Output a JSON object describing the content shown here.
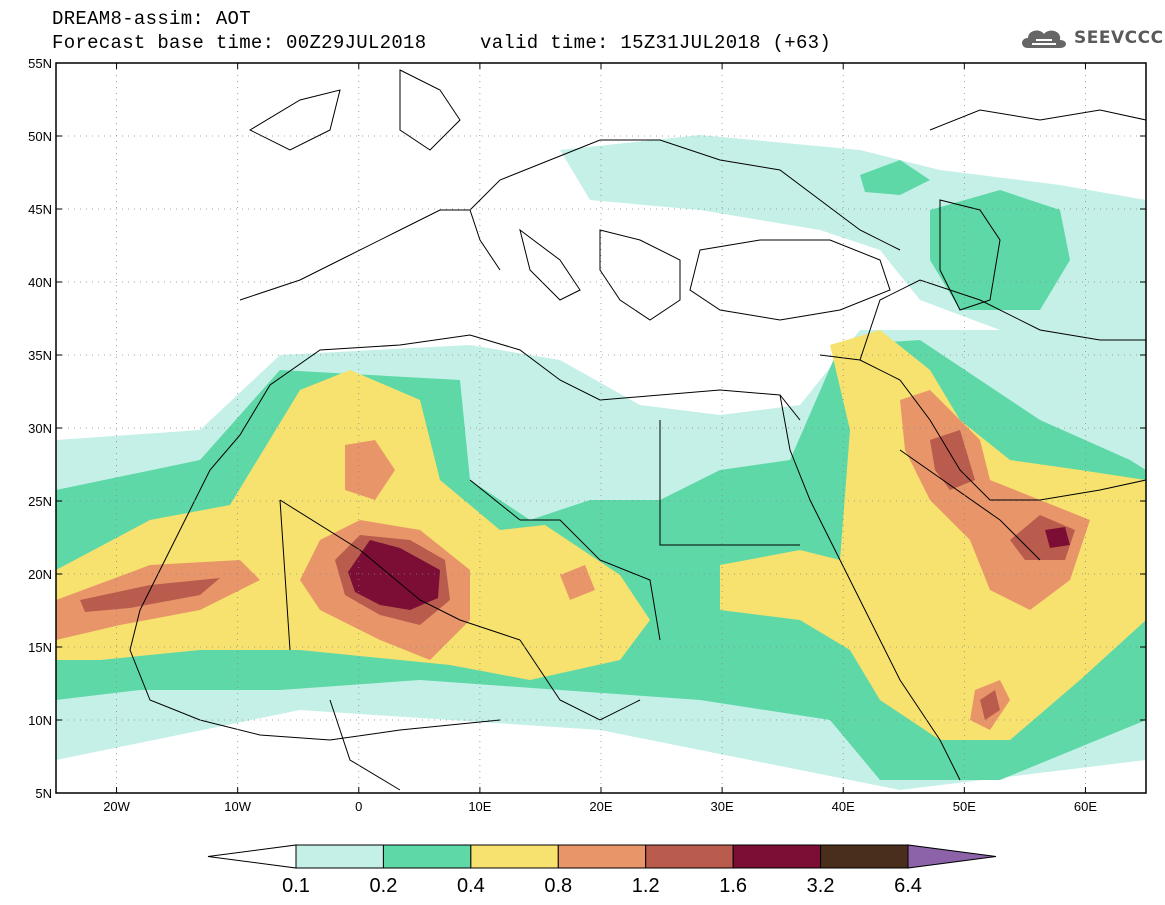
{
  "header": {
    "title_line1": "DREAM8-assim: AOT",
    "title_line2": "Forecast base time: 00Z29JUL2018",
    "valid_time": "valid time: 15Z31JUL2018 (+63)"
  },
  "logo": {
    "icon": "cloud-logo-icon",
    "text": "SEEVCCC"
  },
  "map": {
    "lon_range": [
      -25,
      65
    ],
    "lat_range": [
      5,
      55
    ],
    "lat_labels": [
      "55N",
      "50N",
      "45N",
      "40N",
      "35N",
      "30N",
      "25N",
      "20N",
      "15N",
      "10N",
      "5N"
    ],
    "lat_values": [
      55,
      50,
      45,
      40,
      35,
      30,
      25,
      20,
      15,
      10,
      5
    ],
    "lon_labels": [
      "20W",
      "10W",
      "0",
      "10E",
      "20E",
      "30E",
      "40E",
      "50E",
      "60E"
    ],
    "lon_values": [
      -20,
      -10,
      0,
      10,
      20,
      30,
      40,
      50,
      60
    ],
    "grid": true
  },
  "colorbar": {
    "levels": [
      "0.1",
      "0.2",
      "0.4",
      "0.8",
      "1.2",
      "1.6",
      "3.2",
      "6.4"
    ],
    "colors": [
      "#ffffff",
      "#c4f0e8",
      "#5fd8a8",
      "#f7e26f",
      "#e9956a",
      "#b95c4d",
      "#7c0d34",
      "#4a2e1c",
      "#8c63a8"
    ]
  }
}
